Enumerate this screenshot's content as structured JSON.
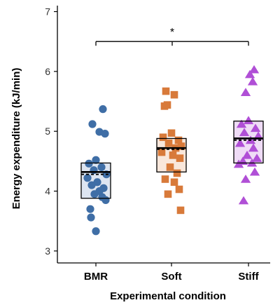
{
  "chart_data": {
    "type": "scatter",
    "xlabel": "Experimental condition",
    "ylabel": "Energy expenditure (kJ/min)",
    "ylim": [
      2.8,
      7.1
    ],
    "yticks": [
      3,
      4,
      5,
      6,
      7
    ],
    "grid": false,
    "categories": [
      "BMR",
      "Soft",
      "Stiff"
    ],
    "significance": {
      "from": "BMR",
      "to": "Stiff",
      "label": "*",
      "y": 6.5
    },
    "series": [
      {
        "category": "BMR",
        "marker": "circle",
        "color": "#3f6ea6",
        "box_fill": "#dde5f1",
        "mean": 4.32,
        "median": 4.28,
        "box": [
          3.88,
          4.47
        ],
        "points": [
          {
            "x": 0.1,
            "y": 5.37
          },
          {
            "x": -0.05,
            "y": 5.12
          },
          {
            "x": 0.05,
            "y": 4.99
          },
          {
            "x": 0.13,
            "y": 4.96
          },
          {
            "x": 0.0,
            "y": 4.52
          },
          {
            "x": -0.1,
            "y": 4.46
          },
          {
            "x": 0.08,
            "y": 4.4
          },
          {
            "x": -0.03,
            "y": 4.35
          },
          {
            "x": 0.15,
            "y": 4.28
          },
          {
            "x": -0.12,
            "y": 4.22
          },
          {
            "x": 0.02,
            "y": 4.15
          },
          {
            "x": -0.06,
            "y": 4.1
          },
          {
            "x": 0.11,
            "y": 4.05
          },
          {
            "x": 0.05,
            "y": 4.0
          },
          {
            "x": -0.02,
            "y": 3.95
          },
          {
            "x": 0.14,
            "y": 3.85
          },
          {
            "x": 0.09,
            "y": 3.9
          },
          {
            "x": -0.08,
            "y": 3.7
          },
          {
            "x": -0.07,
            "y": 3.56
          },
          {
            "x": 0.0,
            "y": 3.33
          }
        ]
      },
      {
        "category": "Soft",
        "marker": "square",
        "color": "#d87a3a",
        "box_fill": "#f9e7db",
        "mean": 4.72,
        "median": 4.7,
        "box": [
          4.32,
          4.88
        ],
        "points": [
          {
            "x": -0.08,
            "y": 5.67
          },
          {
            "x": 0.04,
            "y": 5.61
          },
          {
            "x": -0.1,
            "y": 5.42
          },
          {
            "x": -0.06,
            "y": 5.44
          },
          {
            "x": 0.0,
            "y": 4.97
          },
          {
            "x": -0.12,
            "y": 4.9
          },
          {
            "x": 0.1,
            "y": 4.85
          },
          {
            "x": -0.04,
            "y": 4.8
          },
          {
            "x": 0.14,
            "y": 4.75
          },
          {
            "x": 0.06,
            "y": 4.72
          },
          {
            "x": -0.14,
            "y": 4.65
          },
          {
            "x": 0.02,
            "y": 4.6
          },
          {
            "x": 0.12,
            "y": 4.55
          },
          {
            "x": -0.02,
            "y": 4.4
          },
          {
            "x": 0.08,
            "y": 4.3
          },
          {
            "x": -0.09,
            "y": 4.2
          },
          {
            "x": 0.04,
            "y": 4.15
          },
          {
            "x": 0.11,
            "y": 4.03
          },
          {
            "x": -0.05,
            "y": 3.95
          },
          {
            "x": 0.13,
            "y": 3.68
          }
        ]
      },
      {
        "category": "Stiff",
        "marker": "triangle",
        "color": "#b04fd6",
        "box_fill": "#efdcf6",
        "mean": 4.88,
        "median": 4.85,
        "box": [
          4.47,
          5.17
        ],
        "points": [
          {
            "x": 0.08,
            "y": 6.03
          },
          {
            "x": 0.02,
            "y": 5.95
          },
          {
            "x": 0.06,
            "y": 5.83
          },
          {
            "x": -0.04,
            "y": 5.65
          },
          {
            "x": 0.0,
            "y": 5.18
          },
          {
            "x": -0.1,
            "y": 5.12
          },
          {
            "x": 0.1,
            "y": 5.05
          },
          {
            "x": -0.06,
            "y": 4.98
          },
          {
            "x": 0.14,
            "y": 4.92
          },
          {
            "x": 0.03,
            "y": 4.85
          },
          {
            "x": -0.12,
            "y": 4.8
          },
          {
            "x": 0.07,
            "y": 4.72
          },
          {
            "x": -0.02,
            "y": 4.6
          },
          {
            "x": 0.12,
            "y": 4.55
          },
          {
            "x": -0.08,
            "y": 4.5
          },
          {
            "x": 0.05,
            "y": 4.47
          },
          {
            "x": -0.14,
            "y": 4.45
          },
          {
            "x": 0.09,
            "y": 4.32
          },
          {
            "x": -0.04,
            "y": 4.2
          },
          {
            "x": -0.07,
            "y": 3.84
          }
        ]
      }
    ]
  }
}
